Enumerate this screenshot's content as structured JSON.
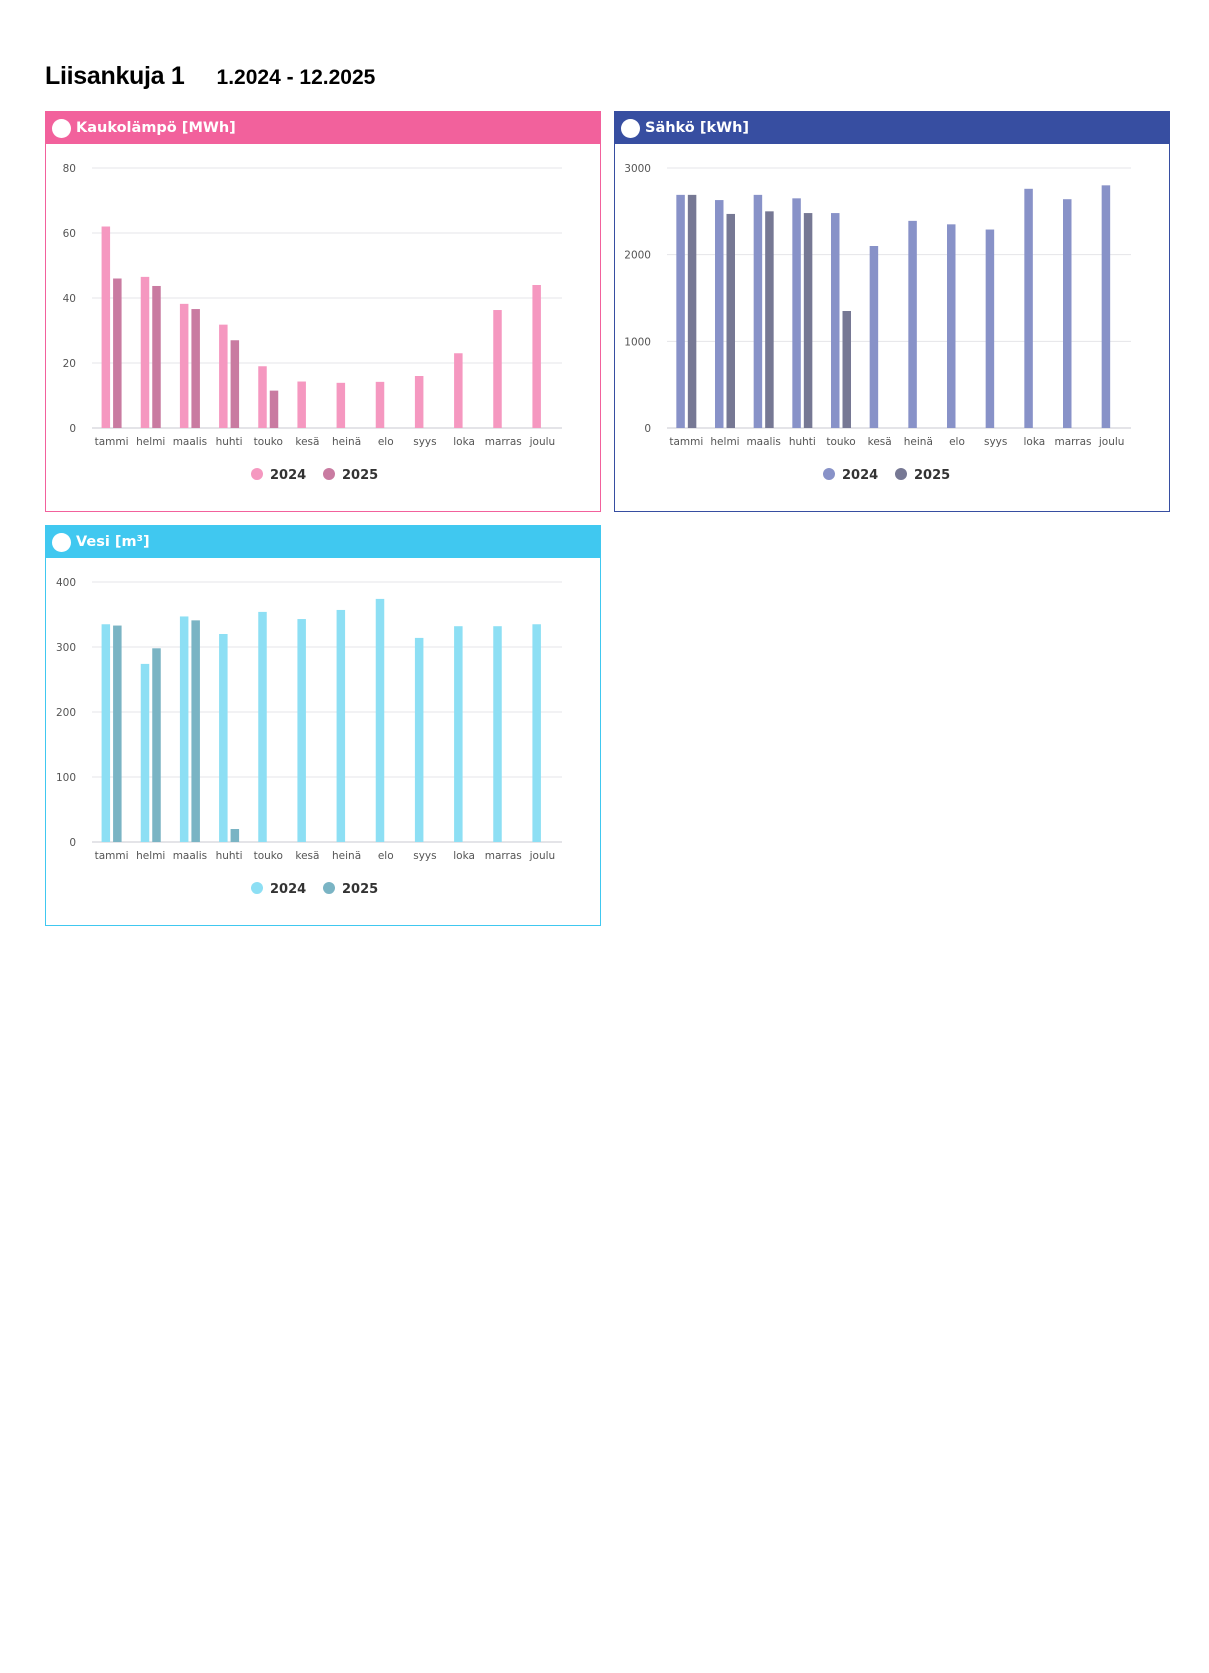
{
  "header": {
    "title": "Liisankuja 1",
    "period": "1.2024 - 12.2025"
  },
  "chart_data": [
    {
      "id": "heat",
      "type": "bar",
      "title": "Kaukolämpö [MWh]",
      "accent": "#f2619c",
      "categories": [
        "tammi",
        "helmi",
        "maalis",
        "huhti",
        "touko",
        "kesä",
        "heinä",
        "elo",
        "syys",
        "loka",
        "marras",
        "joulu"
      ],
      "ylim": [
        0,
        80
      ],
      "yticks": [
        0,
        20,
        40,
        60,
        80
      ],
      "grid": true,
      "legend_position": "bottom-center",
      "series": [
        {
          "name": "2024",
          "color": "#f598c0",
          "values": [
            62,
            46.5,
            38.2,
            31.8,
            19,
            14.3,
            13.9,
            14.2,
            16,
            23,
            36.3,
            44
          ]
        },
        {
          "name": "2025",
          "color": "#c97ba1",
          "values": [
            46,
            43.7,
            36.6,
            27,
            11.5,
            null,
            null,
            null,
            null,
            null,
            null,
            null
          ]
        }
      ]
    },
    {
      "id": "electricity",
      "type": "bar",
      "title": "Sähkö [kWh]",
      "accent": "#374ea1",
      "categories": [
        "tammi",
        "helmi",
        "maalis",
        "huhti",
        "touko",
        "kesä",
        "heinä",
        "elo",
        "syys",
        "loka",
        "marras",
        "joulu"
      ],
      "ylim": [
        0,
        3000
      ],
      "yticks": [
        0,
        1000,
        2000,
        3000
      ],
      "grid": true,
      "legend_position": "bottom-center",
      "series": [
        {
          "name": "2024",
          "color": "#8892c8",
          "values": [
            2690,
            2630,
            2690,
            2650,
            2480,
            2100,
            2390,
            2350,
            2290,
            2760,
            2640,
            2800
          ]
        },
        {
          "name": "2025",
          "color": "#767894",
          "values": [
            2690,
            2470,
            2500,
            2480,
            1350,
            null,
            null,
            null,
            null,
            null,
            null,
            null
          ]
        }
      ]
    },
    {
      "id": "water",
      "type": "bar",
      "title": "Vesi [m³]",
      "accent": "#40c8f0",
      "categories": [
        "tammi",
        "helmi",
        "maalis",
        "huhti",
        "touko",
        "kesä",
        "heinä",
        "elo",
        "syys",
        "loka",
        "marras",
        "joulu"
      ],
      "ylim": [
        0,
        400
      ],
      "yticks": [
        0,
        100,
        200,
        300,
        400
      ],
      "grid": true,
      "legend_position": "bottom-center",
      "series": [
        {
          "name": "2024",
          "color": "#8ddff4",
          "values": [
            335,
            274,
            347,
            320,
            354,
            343,
            357,
            374,
            314,
            332,
            332,
            335
          ]
        },
        {
          "name": "2025",
          "color": "#7ab4c4",
          "values": [
            333,
            298,
            341,
            20,
            null,
            null,
            null,
            null,
            null,
            null,
            null,
            null
          ]
        }
      ]
    }
  ]
}
